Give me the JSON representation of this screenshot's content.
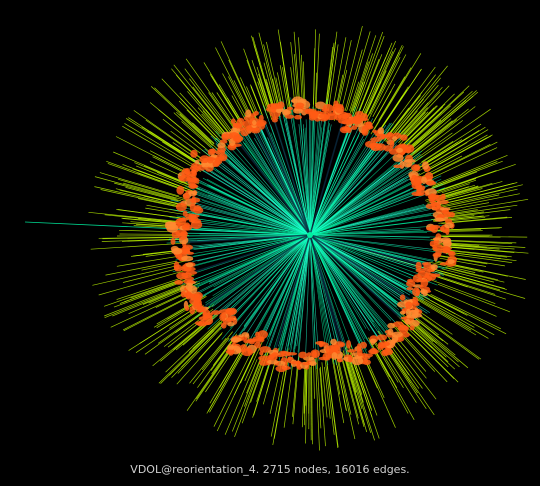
{
  "caption": "VDOL@reorientation_4. 2715 nodes, 16016 edges.",
  "graph": {
    "nodes": 2715,
    "edges": 16016,
    "colors": {
      "background": "#000000",
      "outer_edge": "#b8f000",
      "inner_edge": "#00f0a0",
      "inner_edge_alt": "#20ffd0",
      "cluster": "#ff5a14",
      "cluster_alt": "#ff8a30",
      "dark_edge": "#0a2a40"
    }
  }
}
